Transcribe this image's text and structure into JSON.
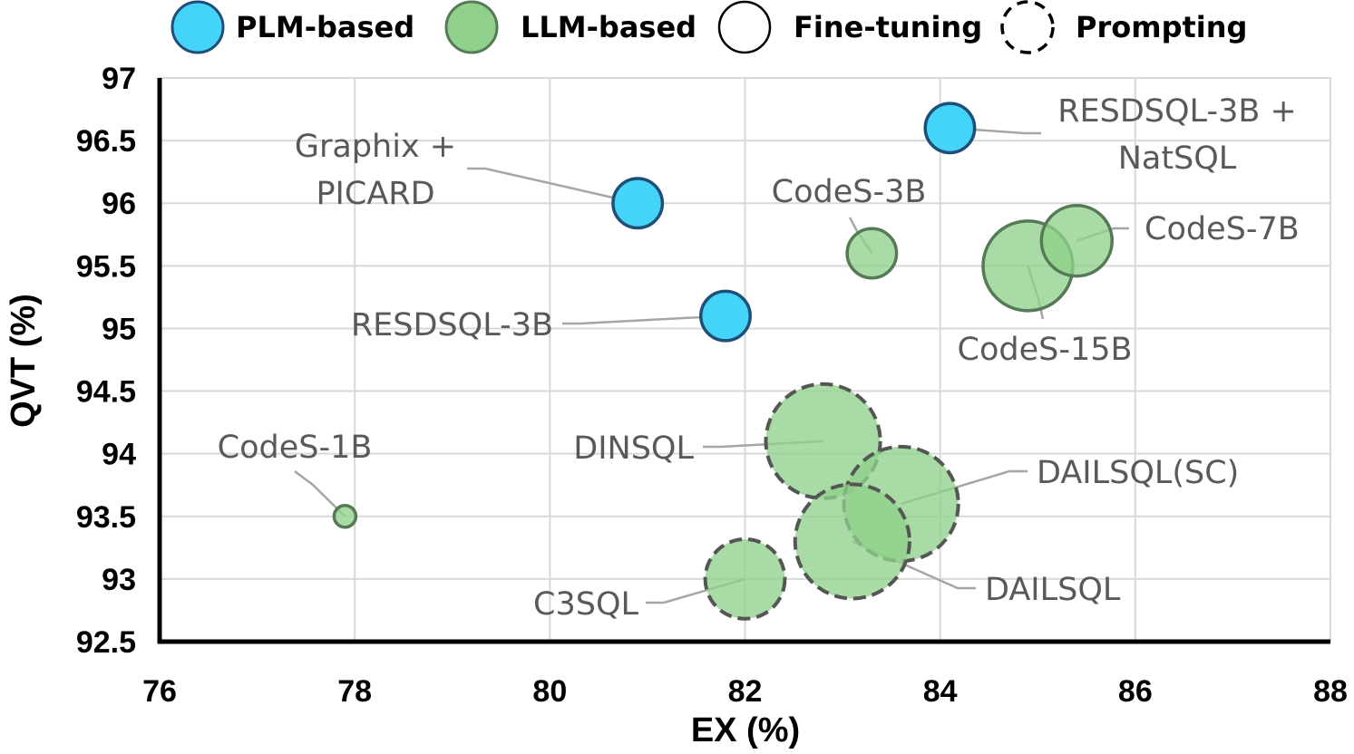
{
  "chart_data": {
    "type": "scatter",
    "title": "",
    "xlabel": "EX (%)",
    "ylabel": "QVT (%)",
    "xlim": [
      76,
      88
    ],
    "ylim": [
      92.5,
      97
    ],
    "x_ticks": [
      76,
      78,
      80,
      82,
      84,
      86,
      88
    ],
    "y_ticks": [
      92.5,
      93,
      93.5,
      94,
      94.5,
      95,
      95.5,
      96,
      96.5,
      97
    ],
    "grid": true,
    "legend": [
      {
        "label": "PLM-based",
        "kind": "fill",
        "color": "#44d4f8"
      },
      {
        "label": "LLM-based",
        "kind": "fill",
        "color": "#8fd18c"
      },
      {
        "label": "Fine-tuning",
        "kind": "solid-outline"
      },
      {
        "label": "Prompting",
        "kind": "dashed-outline"
      }
    ],
    "legend_position": "top",
    "points": [
      {
        "name": "RESDSQL-3B + NatSQL",
        "label_lines": [
          "RESDSQL-3B +",
          "NatSQL"
        ],
        "x": 84.1,
        "y": 96.6,
        "group": "PLM-based",
        "method": "Fine-tuning",
        "size": 3
      },
      {
        "name": "Graphix + PICARD",
        "label_lines": [
          "Graphix +",
          "PICARD"
        ],
        "x": 80.9,
        "y": 96.0,
        "group": "PLM-based",
        "method": "Fine-tuning",
        "size": 3
      },
      {
        "name": "RESDSQL-3B",
        "label_lines": [
          "RESDSQL-3B"
        ],
        "x": 81.8,
        "y": 95.1,
        "group": "PLM-based",
        "method": "Fine-tuning",
        "size": 3
      },
      {
        "name": "CodeS-3B",
        "label_lines": [
          "CodeS-3B"
        ],
        "x": 83.3,
        "y": 95.6,
        "group": "LLM-based",
        "method": "Fine-tuning",
        "size": 3
      },
      {
        "name": "CodeS-7B",
        "label_lines": [
          "CodeS-7B"
        ],
        "x": 85.4,
        "y": 95.7,
        "group": "LLM-based",
        "method": "Fine-tuning",
        "size": 7
      },
      {
        "name": "CodeS-15B",
        "label_lines": [
          "CodeS-15B"
        ],
        "x": 84.9,
        "y": 95.5,
        "group": "LLM-based",
        "method": "Fine-tuning",
        "size": 15
      },
      {
        "name": "CodeS-1B",
        "label_lines": [
          "CodeS-1B"
        ],
        "x": 77.9,
        "y": 93.5,
        "group": "LLM-based",
        "method": "Fine-tuning",
        "size": 1
      },
      {
        "name": "DINSQL",
        "label_lines": [
          "DINSQL"
        ],
        "x": 82.8,
        "y": 94.1,
        "group": "LLM-based",
        "method": "Prompting",
        "size": 40
      },
      {
        "name": "DAILSQL(SC)",
        "label_lines": [
          "DAILSQL(SC)"
        ],
        "x": 83.6,
        "y": 93.6,
        "group": "LLM-based",
        "method": "Prompting",
        "size": 40
      },
      {
        "name": "DAILSQL",
        "label_lines": [
          "DAILSQL"
        ],
        "x": 83.1,
        "y": 93.3,
        "group": "LLM-based",
        "method": "Prompting",
        "size": 40
      },
      {
        "name": "C3SQL",
        "label_lines": [
          "C3SQL"
        ],
        "x": 82.0,
        "y": 93.0,
        "group": "LLM-based",
        "method": "Prompting",
        "size": 10
      }
    ]
  }
}
